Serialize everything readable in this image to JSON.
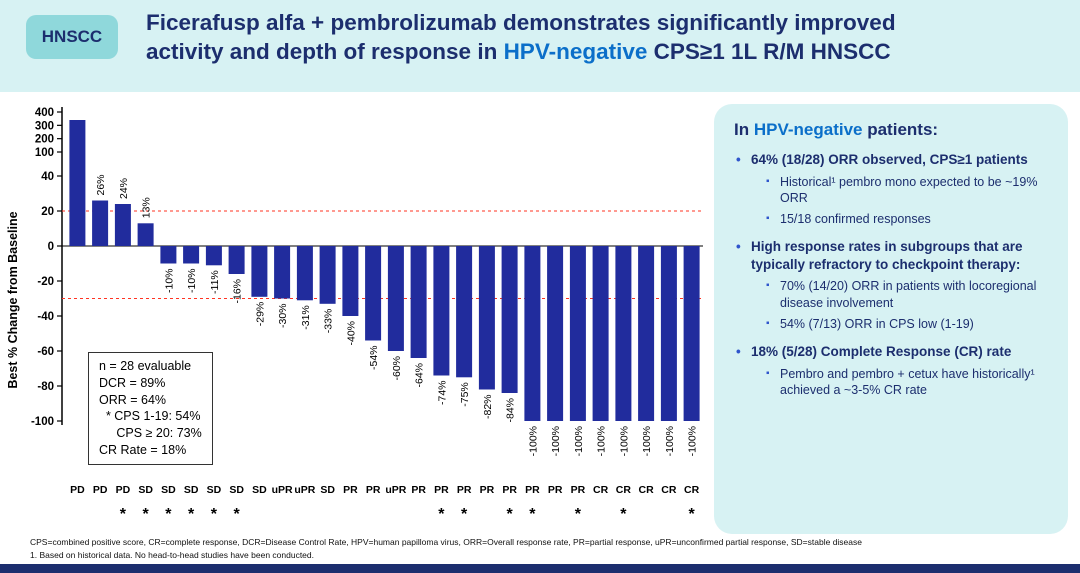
{
  "colors": {
    "header_bg": "#d7f2f3",
    "badge_bg": "#8fd8db",
    "navy": "#1c2e6e",
    "highlight_blue": "#0b6fc9",
    "panel_bg": "#d7f2f3",
    "bullet_blue": "#2f55cc",
    "bar_blue": "#212c9d",
    "ref_red": "#ff3322"
  },
  "header": {
    "badge": "HNSCC",
    "title_line1": "Ficerafusp alfa + pembrolizumab demonstrates significantly improved",
    "title_line2_pre": "activity and depth of response in ",
    "title_highlight": "HPV-negative",
    "title_line2_post": " CPS≥1 1L R/M HNSCC"
  },
  "chart_data": {
    "type": "bar",
    "subtype": "waterfall",
    "title": "",
    "xlabel": "",
    "ylabel": "Best % Change from Baseline",
    "categories": [
      "PD",
      "PD",
      "PD",
      "SD",
      "SD",
      "SD",
      "SD",
      "SD",
      "SD",
      "uPR",
      "uPR",
      "SD",
      "PR",
      "PR",
      "uPR",
      "PR",
      "PR",
      "PR",
      "PR",
      "PR",
      "PR",
      "PR",
      "PR",
      "CR",
      "CR",
      "CR",
      "CR",
      "CR"
    ],
    "values": [
      340,
      26,
      24,
      13,
      -10,
      -10,
      -11,
      -16,
      -29,
      -30,
      -31,
      -33,
      -40,
      -54,
      -60,
      -64,
      -74,
      -75,
      -82,
      -84,
      -100,
      -100,
      -100,
      -100,
      -100,
      -100,
      -100,
      -100
    ],
    "bar_labels": [
      "",
      "26%",
      "24%",
      "13%",
      "-10%",
      "-10%",
      "-11%",
      "-16%",
      "-29%",
      "-30%",
      "-31%",
      "-33%",
      "-40%",
      "-54%",
      "-60%",
      "-64%",
      "-74%",
      "-75%",
      "-82%",
      "-84%",
      "-100%",
      "-100%",
      "-100%",
      "-100%",
      "-100%",
      "-100%",
      "-100%",
      "-100%"
    ],
    "asterisk_indices": [
      2,
      3,
      4,
      5,
      6,
      7,
      16,
      17,
      19,
      20,
      22,
      24,
      27
    ],
    "y_ticks_upper": [
      400,
      300,
      200,
      100
    ],
    "y_ticks_main": [
      40,
      20,
      0,
      -20,
      -40,
      -60,
      -80,
      -100
    ],
    "ylim_main": [
      -100,
      40
    ],
    "ylim_upper": [
      100,
      400
    ],
    "axis_break": true,
    "reference_lines": [
      20,
      -30
    ],
    "grid": false,
    "legend": null,
    "bar_color": "#212c9d",
    "ref_line_color": "#ff3322",
    "inset_box_lines": [
      "n = 28 evaluable",
      "DCR = 89%",
      "ORR = 64%",
      "  * CPS 1-19: 54%",
      "     CPS ≥ 20: 73%",
      "CR Rate = 18%"
    ]
  },
  "panel": {
    "title_pre": "In ",
    "title_highlight": "HPV-negative",
    "title_post": " patients:",
    "bullets": [
      {
        "text": "64% (18/28) ORR observed, CPS≥1 patients",
        "subs": [
          "Historical¹ pembro mono expected to be ~19% ORR",
          "15/18 confirmed responses"
        ]
      },
      {
        "text": "High response rates in subgroups that are typically refractory to checkpoint therapy:",
        "subs": [
          "70% (14/20) ORR in patients with locoregional disease involvement",
          "54% (7/13) ORR in CPS low (1-19)"
        ]
      },
      {
        "text": "18% (5/28) Complete Response (CR) rate",
        "subs": [
          "Pembro and pembro + cetux have historically¹ achieved a ~3-5% CR rate"
        ]
      }
    ]
  },
  "footer": {
    "abbreviations": "CPS=combined positive score, CR=complete response, DCR=Disease Control Rate, HPV=human papilloma virus, ORR=Overall response rate, PR=partial response, uPR=unconfirmed partial response, SD=stable disease",
    "note1": "1. Based on historical data. No head-to-head studies have been conducted."
  }
}
